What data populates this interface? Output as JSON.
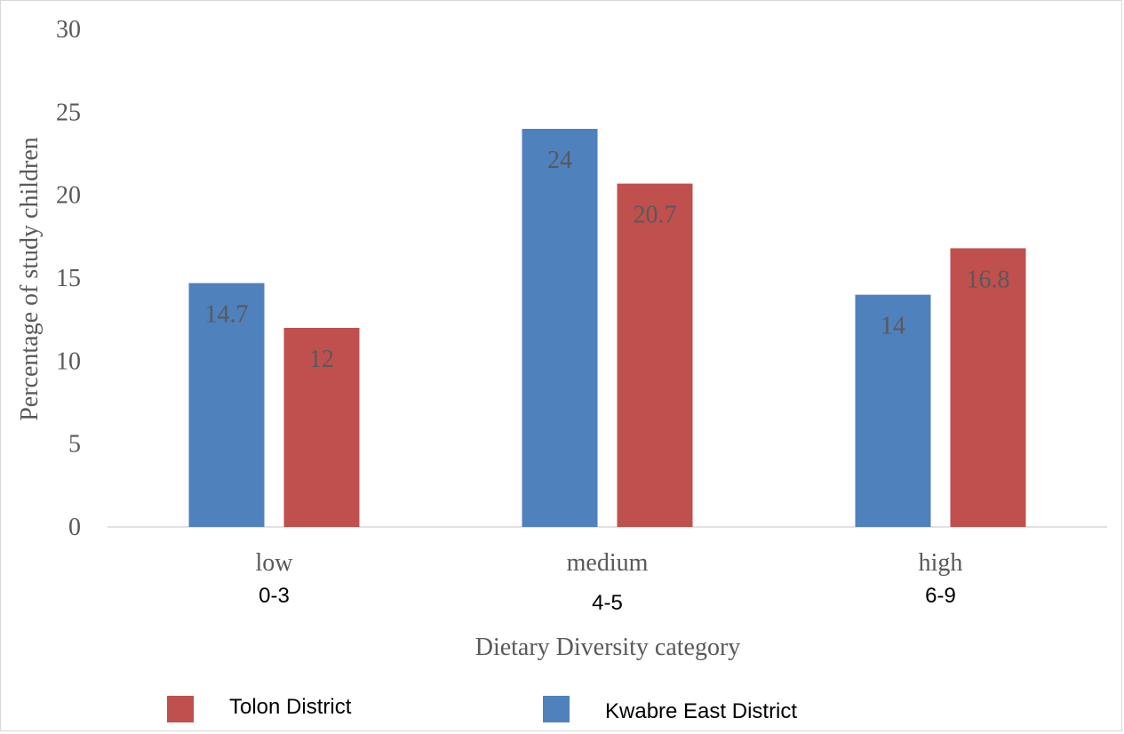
{
  "chart_data": {
    "type": "bar",
    "categories": [
      "low",
      "medium",
      "high"
    ],
    "category_ranges": [
      "0-3",
      "4-5",
      "6-9"
    ],
    "series": [
      {
        "name": "Kwabre East District",
        "values": [
          14.7,
          24,
          14
        ],
        "labels": [
          "14.7",
          "24",
          "14"
        ],
        "color": "#4f81bd"
      },
      {
        "name": "Tolon District",
        "values": [
          12,
          20.7,
          16.8
        ],
        "labels": [
          "12",
          "20.7",
          "16.8"
        ],
        "color": "#c0504d"
      }
    ],
    "xlabel": "Dietary Diversity category",
    "ylabel": "Percentage of study children",
    "ylim": [
      0,
      30
    ],
    "yticks": [
      "0",
      "5",
      "10",
      "15",
      "20",
      "25",
      "30"
    ],
    "grid": false,
    "legend_position": "bottom",
    "legend": [
      {
        "name": "Tolon District",
        "color": "#c0504d"
      },
      {
        "name": "Kwabre East District",
        "color": "#4f81bd"
      }
    ]
  }
}
